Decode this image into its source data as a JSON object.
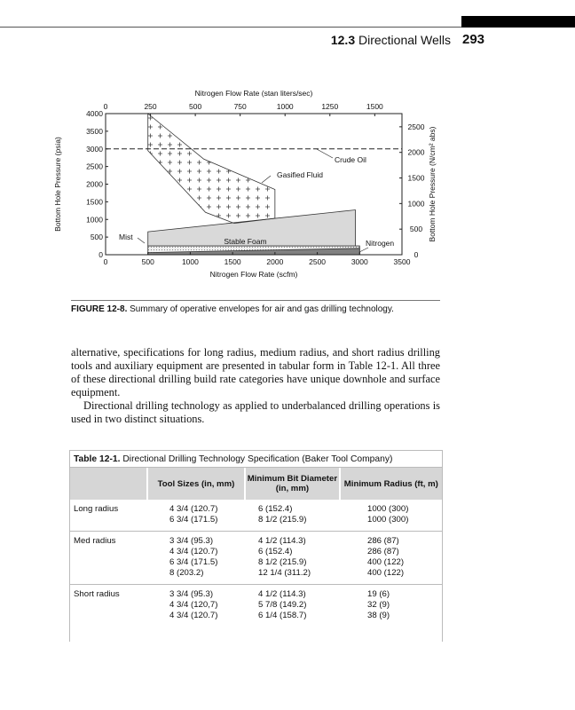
{
  "header": {
    "section": "12.3",
    "title": "Directional Wells",
    "page_number": "293"
  },
  "chart_data": {
    "type": "area",
    "top_axis": {
      "label": "Nitrogen Flow Rate (stan liters/sec)",
      "ticks": [
        "0",
        "250",
        "500",
        "750",
        "1000",
        "1250",
        "1500"
      ]
    },
    "bottom_axis": {
      "label": "Nitrogen Flow Rate (scfm)",
      "ticks": [
        "0",
        "500",
        "1000",
        "1500",
        "2000",
        "2500",
        "3000",
        "3500"
      ],
      "range": [
        0,
        3500
      ]
    },
    "left_axis": {
      "label": "Bottom Hole Pressure (psia)",
      "ticks": [
        "0",
        "500",
        "1000",
        "1500",
        "2000",
        "2500",
        "3000",
        "3500",
        "4000"
      ],
      "range": [
        0,
        4000
      ]
    },
    "right_axis": {
      "label": "Bottom Hole Pressure (N/cm² abs)",
      "ticks": [
        "0",
        "500",
        "1000",
        "1500",
        "2000",
        "2500"
      ]
    },
    "regions": [
      {
        "name": "Gasified Fluid",
        "fill": "plus-hatch",
        "points": [
          [
            500,
            4000
          ],
          [
            1160,
            2710
          ],
          [
            2000,
            1850
          ],
          [
            2000,
            1030
          ],
          [
            1520,
            890
          ],
          [
            1180,
            1200
          ],
          [
            500,
            2950
          ]
        ]
      },
      {
        "name": "Stable Foam",
        "fill": "#d9d9d9",
        "points": [
          [
            500,
            650
          ],
          [
            2950,
            1270
          ],
          [
            2950,
            250
          ],
          [
            500,
            250
          ]
        ]
      },
      {
        "name": "Mist",
        "fill": "dotted",
        "points": [
          [
            500,
            250
          ],
          [
            3000,
            250
          ],
          [
            3000,
            0
          ],
          [
            500,
            0
          ]
        ]
      },
      {
        "name": "Nitrogen",
        "fill": "#808080",
        "points": [
          [
            500,
            60
          ],
          [
            1500,
            110
          ],
          [
            3000,
            180
          ],
          [
            3000,
            0
          ],
          [
            500,
            0
          ]
        ]
      }
    ],
    "lines": [
      {
        "name": "Crude Oil",
        "style": "dashed",
        "y": 3000
      }
    ],
    "annotations": [
      "Gasified Fluid",
      "Crude Oil",
      "Stable Foam",
      "Mist",
      "Nitrogen"
    ]
  },
  "figure": {
    "label": "FIGURE 12-8.",
    "caption": "Summary of operative envelopes for air and gas drilling technology."
  },
  "body": [
    "alternative, specifications for long radius, medium radius, and short radius drilling tools and auxiliary equipment are presented in tabular form in Table 12-1. All three of these directional drilling build rate categories have unique downhole and surface equipment.",
    "Directional drilling technology as applied to underbalanced drilling operations is used in two distinct situations."
  ],
  "table": {
    "label": "Table 12-1.",
    "title": "Directional Drilling Technology Specification (Baker Tool Company)",
    "columns": [
      "",
      "Tool Sizes (in, mm)",
      "Minimum Bit Diameter (in, mm)",
      "Minimum Radius (ft, m)"
    ],
    "rows": [
      {
        "name": "Long radius",
        "tools": [
          "4 3/4 (120.7)",
          "6 3/4 (171.5)"
        ],
        "bits": [
          "6 (152.4)",
          "8 1/2 (215.9)"
        ],
        "radius": [
          "1000 (300)",
          "1000 (300)"
        ]
      },
      {
        "name": "Med radius",
        "tools": [
          "3 3/4 (95.3)",
          "4 3/4 (120.7)",
          "6 3/4 (171.5)",
          "8 (203.2)"
        ],
        "bits": [
          "4 1/2 (114.3)",
          "6 (152.4)",
          "8 1/2 (215.9)",
          "12 1/4 (311.2)"
        ],
        "radius": [
          "286 (87)",
          "286 (87)",
          "400 (122)",
          "400 (122)"
        ]
      },
      {
        "name": "Short radius",
        "tools": [
          "3 3/4 (95.3)",
          "4 3/4 (120,7)",
          "4 3/4 (120.7)"
        ],
        "bits": [
          "4 1/2 (114.3)",
          "5 7/8 (149.2)",
          "6 1/4 (158.7)"
        ],
        "radius": [
          "19 (6)",
          "32 (9)",
          "38 (9)"
        ]
      }
    ]
  }
}
